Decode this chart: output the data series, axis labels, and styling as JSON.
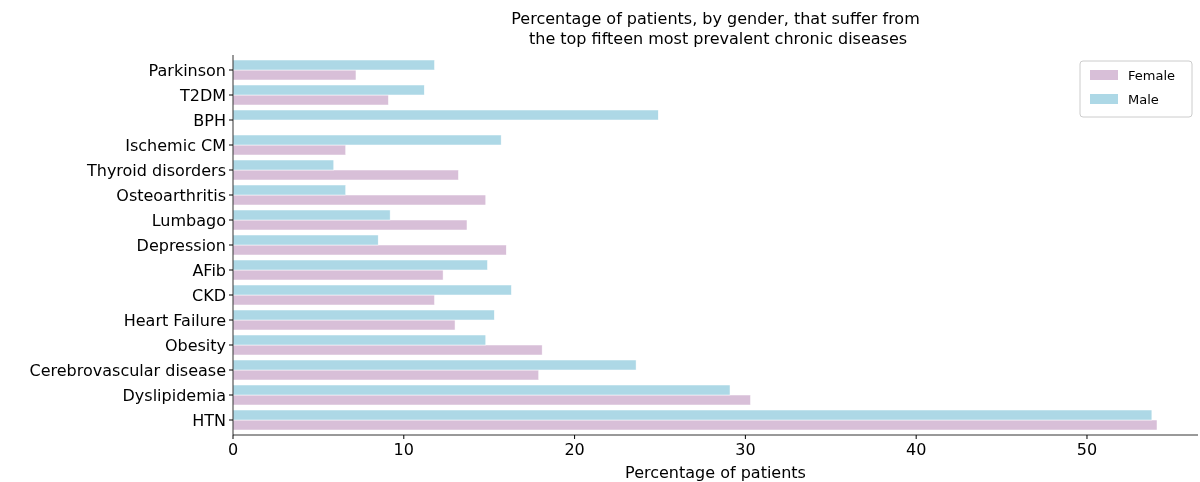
{
  "chart_data": {
    "type": "bar",
    "orientation": "horizontal",
    "title": "Percentage of patients, by gender, that suffer from\n the top fifteen most prevalent chronic diseases",
    "xlabel": "Percentage of patients",
    "categories": [
      "Parkinson",
      "T2DM",
      "BPH",
      "Ischemic CM",
      "Thyroid disorders",
      "Osteoarthritis",
      "Lumbago",
      "Depression",
      "AFib",
      "CKD",
      "Heart Failure",
      "Obesity",
      "Cerebrovascular disease",
      "Dyslipidemia",
      "HTN"
    ],
    "series": [
      {
        "name": "Female",
        "color": "#d8bfd8",
        "values": [
          7.2,
          9.1,
          0,
          6.6,
          13.2,
          14.8,
          13.7,
          16.0,
          12.3,
          11.8,
          13.0,
          18.1,
          17.9,
          30.3,
          54.1
        ]
      },
      {
        "name": "Male",
        "color": "#add8e6",
        "values": [
          11.8,
          11.2,
          24.9,
          15.7,
          5.9,
          6.6,
          9.2,
          8.5,
          14.9,
          16.3,
          15.3,
          14.8,
          23.6,
          29.1,
          53.8
        ]
      }
    ],
    "xlim": [
      0,
      56.5
    ],
    "xticks": [
      0,
      10,
      20,
      30,
      40,
      50
    ],
    "legend": "top right",
    "grid": false
  }
}
